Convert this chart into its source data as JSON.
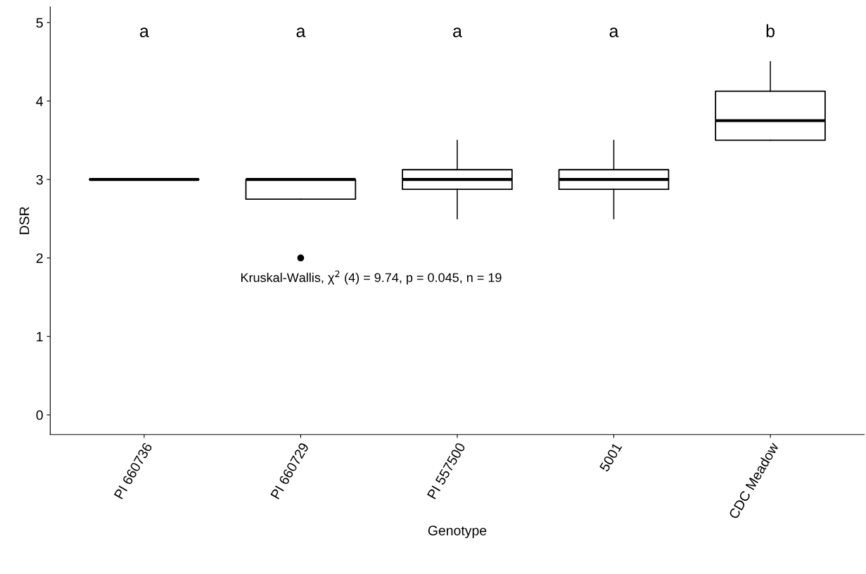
{
  "chart_data": {
    "type": "box",
    "xlabel": "Genotype",
    "ylabel": "DSR",
    "categories": [
      "PI 660736",
      "PI 660729",
      "PI 557500",
      "5001",
      "CDC Meadow"
    ],
    "boxes": [
      {
        "low": 3,
        "q1": 3,
        "median": 3,
        "q3": 3,
        "high": 3
      },
      {
        "low": 2.75,
        "q1": 2.75,
        "median": 3,
        "q3": 3,
        "high": 3,
        "outliers": [
          2
        ]
      },
      {
        "low": 2.5,
        "q1": 2.875,
        "median": 3,
        "q3": 3.125,
        "high": 3.5
      },
      {
        "low": 2.5,
        "q1": 2.875,
        "median": 3,
        "q3": 3.125,
        "high": 3.5
      },
      {
        "low": 3.5,
        "q1": 3.5,
        "median": 3.75,
        "q3": 4.125,
        "high": 4.5
      }
    ],
    "ylim": [
      -0.25,
      5.2
    ],
    "yticks": [
      0,
      1,
      2,
      3,
      4,
      5
    ],
    "grid": false,
    "annotations": [
      "a",
      "a",
      "a",
      "a",
      "b",
      "Kruskal-Wallis, χ$^{2}$ (4) = 9.74, p = 0.045, n = 19"
    ]
  }
}
